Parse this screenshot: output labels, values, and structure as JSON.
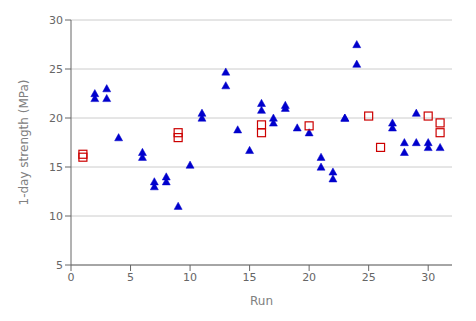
{
  "chart_data": {
    "type": "scatter",
    "xlabel": "Run",
    "ylabel": "1-day strength (MPa)",
    "xlim": [
      0,
      32
    ],
    "ylim": [
      5,
      30
    ],
    "xticks": [
      0,
      5,
      10,
      15,
      20,
      25,
      30
    ],
    "yticks": [
      5,
      10,
      15,
      20,
      25,
      30
    ],
    "grid": true,
    "series": [
      {
        "color": "#0000cc",
        "marker": "triangle",
        "x": [
          2,
          2,
          3,
          3,
          4,
          6,
          6,
          7,
          7,
          8,
          8,
          9,
          10,
          11,
          11,
          13,
          13,
          14,
          15,
          16,
          16,
          17,
          17,
          18,
          18,
          19,
          20,
          21,
          21,
          22,
          22,
          23,
          23,
          24,
          24,
          27,
          27,
          28,
          28,
          29,
          29,
          30,
          30,
          31
        ],
        "values": [
          22,
          22.5,
          23,
          22,
          18,
          16.5,
          16,
          13.5,
          13,
          14,
          13.5,
          11,
          15.2,
          20.5,
          20,
          24.7,
          23.3,
          18.8,
          16.7,
          21.5,
          20.8,
          20,
          19.5,
          21,
          21.3,
          19,
          18.5,
          16,
          15,
          14.5,
          13.8,
          20,
          20,
          25.5,
          27.5,
          19.5,
          19,
          16.5,
          17.5,
          20.5,
          17.5,
          17,
          17.5,
          17
        ]
      },
      {
        "color": "#cc0000",
        "marker": "open_square",
        "x": [
          1,
          1,
          9,
          9,
          16,
          16,
          20,
          25,
          26,
          30,
          31,
          31
        ],
        "values": [
          16.3,
          16,
          18.5,
          18,
          19.3,
          18.5,
          19.2,
          20.2,
          17,
          20.2,
          19.5,
          18.5
        ]
      }
    ]
  }
}
